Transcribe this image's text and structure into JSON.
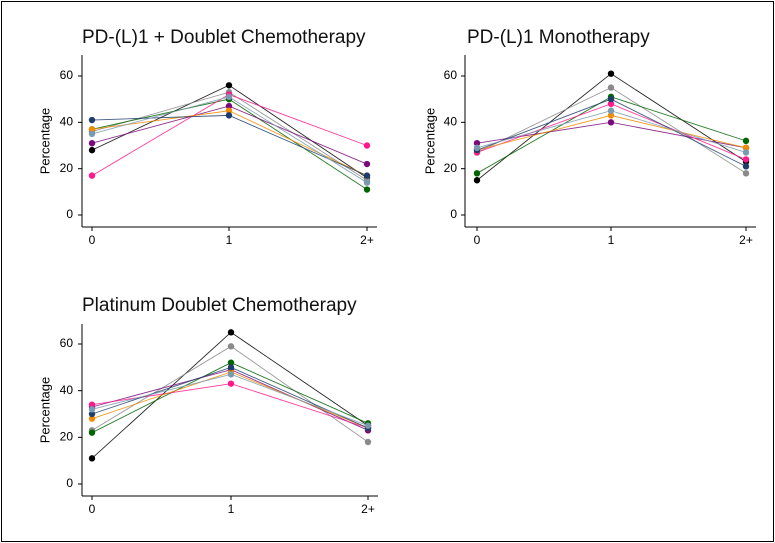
{
  "series_colors": [
    "#000000",
    "#8a8a8a",
    "#006400",
    "#7a0a7a",
    "#ff1a8c",
    "#f08c00",
    "#1f3d6b",
    "#7a9ab0"
  ],
  "chart_data": [
    {
      "type": "line",
      "title": "PD-(L)1 + Doublet Chemotherapy",
      "categories": [
        "0",
        "1",
        "2+"
      ],
      "ylabel": "Percentage",
      "xlabel": "",
      "ylim": [
        0,
        70
      ],
      "yticks": [
        0,
        20,
        40,
        60
      ],
      "grid": false,
      "series": [
        {
          "values": [
            28,
            56,
            16
          ]
        },
        {
          "values": [
            36,
            53,
            15
          ]
        },
        {
          "values": [
            37,
            50,
            11
          ]
        },
        {
          "values": [
            31,
            47,
            22
          ]
        },
        {
          "values": [
            17,
            52,
            30
          ]
        },
        {
          "values": [
            37,
            45,
            17
          ]
        },
        {
          "values": [
            41,
            43,
            17
          ]
        },
        {
          "values": [
            35,
            51,
            14
          ]
        }
      ]
    },
    {
      "type": "line",
      "title": "PD-(L)1 Monotherapy",
      "categories": [
        "0",
        "1",
        "2+"
      ],
      "ylabel": "Percentage",
      "xlabel": "",
      "ylim": [
        0,
        70
      ],
      "yticks": [
        0,
        20,
        40,
        60
      ],
      "grid": false,
      "series": [
        {
          "values": [
            15,
            61,
            23
          ]
        },
        {
          "values": [
            27,
            55,
            18
          ]
        },
        {
          "values": [
            18,
            51,
            32
          ]
        },
        {
          "values": [
            31,
            40,
            29
          ]
        },
        {
          "values": [
            27,
            48,
            24
          ]
        },
        {
          "values": [
            28,
            43,
            29
          ]
        },
        {
          "values": [
            28,
            50,
            21
          ]
        },
        {
          "values": [
            29,
            45,
            27
          ]
        }
      ]
    },
    {
      "type": "line",
      "title": "Platinum Doublet Chemotherapy",
      "categories": [
        "0",
        "1",
        "2+"
      ],
      "ylabel": "Percentage",
      "xlabel": "",
      "ylim": [
        0,
        70
      ],
      "yticks": [
        0,
        20,
        40,
        60
      ],
      "grid": false,
      "series": [
        {
          "values": [
            11,
            65,
            25
          ]
        },
        {
          "values": [
            23,
            59,
            18
          ]
        },
        {
          "values": [
            22,
            52,
            26
          ]
        },
        {
          "values": [
            33,
            49,
            23
          ]
        },
        {
          "values": [
            34,
            43,
            24
          ]
        },
        {
          "values": [
            28,
            48,
            24
          ]
        },
        {
          "values": [
            30,
            50,
            24
          ]
        },
        {
          "values": [
            32,
            47,
            25
          ]
        }
      ]
    }
  ]
}
